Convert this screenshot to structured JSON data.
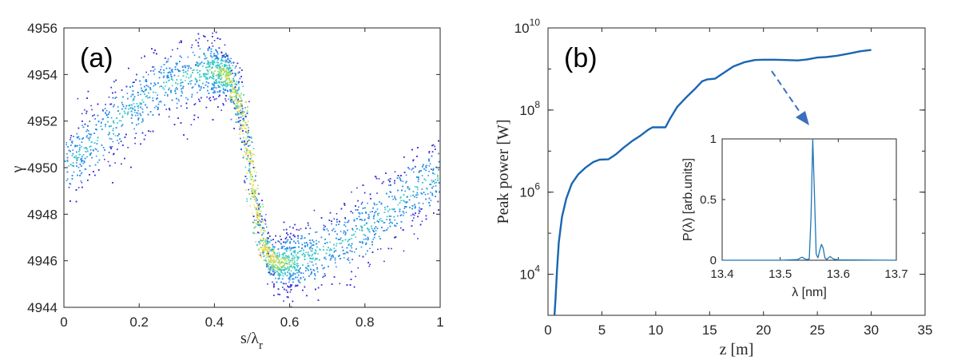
{
  "chart_data": [
    {
      "panel_label": "(a)",
      "type": "scatter",
      "xlabel": "s/λ",
      "xlabel_sub": "r",
      "ylabel": "γ",
      "xlim": [
        0,
        1
      ],
      "ylim": [
        4944,
        4956
      ],
      "xticks": [
        0,
        0.2,
        0.4,
        0.6,
        0.8,
        1
      ],
      "xtick_labels": [
        "0",
        "0.2",
        "0.4",
        "0.6",
        "0.8",
        "1"
      ],
      "yticks": [
        4944,
        4946,
        4948,
        4950,
        4952,
        4954,
        4956
      ],
      "ytick_labels": [
        "4944",
        "4946",
        "4948",
        "4950",
        "4952",
        "4954",
        "4956"
      ],
      "colormap": [
        "#3b2dd6",
        "#2b8ee8",
        "#3cc8c8",
        "#9ddc6a",
        "#f5d64a",
        "#f7e84a"
      ],
      "centerline": {
        "x": [
          0,
          0.05,
          0.1,
          0.15,
          0.2,
          0.25,
          0.3,
          0.35,
          0.4,
          0.44,
          0.47,
          0.5,
          0.53,
          0.56,
          0.6,
          0.65,
          0.7,
          0.75,
          0.8,
          0.85,
          0.9,
          0.95,
          1
        ],
        "y": [
          4950.0,
          4950.8,
          4951.5,
          4952.2,
          4952.9,
          4953.4,
          4953.8,
          4954.1,
          4954.2,
          4953.9,
          4952.5,
          4949.2,
          4946.6,
          4945.9,
          4946.0,
          4946.2,
          4946.5,
          4946.9,
          4947.4,
          4948.0,
          4948.7,
          4949.3,
          4949.8
        ]
      }
    },
    {
      "panel_label": "(b)",
      "type": "line",
      "xlabel": "z [m]",
      "ylabel": "Peak power [W]",
      "yscale": "log",
      "xlim": [
        0,
        35
      ],
      "ylim": [
        1000,
        10000000000
      ],
      "xticks": [
        0,
        5,
        10,
        15,
        20,
        25,
        30,
        35
      ],
      "xtick_labels": [
        "0",
        "5",
        "10",
        "15",
        "20",
        "25",
        "30",
        "35"
      ],
      "yticks": [
        10000,
        1000000,
        100000000,
        10000000000
      ],
      "ytick_labels": [
        {
          "base": "10",
          "exp": "4"
        },
        {
          "base": "10",
          "exp": "6"
        },
        {
          "base": "10",
          "exp": "8"
        },
        {
          "base": "10",
          "exp": "10"
        }
      ],
      "color": "#1a66b3",
      "series": [
        {
          "x": [
            0.6,
            0.7,
            0.85,
            1.0,
            1.3,
            1.7,
            2.2,
            2.8,
            3.5,
            4.2,
            4.8,
            5.6,
            6.3,
            7.0,
            7.8,
            8.6,
            9.3,
            9.7,
            10.3,
            10.9,
            11.3,
            12.0,
            12.8,
            13.6,
            14.3,
            14.8,
            15.5,
            16.3,
            17.2,
            18.2,
            19.2,
            20.0,
            21.0,
            22.0,
            23.2,
            24.0,
            25.0,
            25.8,
            26.8,
            28.0,
            29.0,
            30.0
          ],
          "y": [
            1000,
            2500,
            15000,
            60000,
            250000,
            700000,
            1600000,
            2700000,
            4000000,
            5400000,
            6200000,
            6300000,
            8300000,
            12000000,
            17500000,
            24000000,
            33000000,
            38000000,
            38000000,
            38000000,
            60000000,
            120000000,
            200000000,
            320000000,
            500000000,
            560000000,
            580000000,
            800000000,
            1150000000,
            1450000000,
            1650000000,
            1680000000,
            1680000000,
            1650000000,
            1620000000,
            1700000000,
            1900000000,
            1950000000,
            2100000000,
            2400000000,
            2700000000,
            2900000000
          ]
        }
      ],
      "arrow_color": "#3c6fbf",
      "inset": {
        "type": "line",
        "xlabel": "λ [nm]",
        "ylabel": "P(λ) [arb.units]",
        "xlim": [
          13.4,
          13.7
        ],
        "ylim": [
          0,
          1
        ],
        "xticks": [
          13.4,
          13.5,
          13.6,
          13.7
        ],
        "xtick_labels": [
          "13.4",
          "13.5",
          "13.6",
          "13.7"
        ],
        "yticks": [
          0,
          0.5,
          1
        ],
        "ytick_labels": [
          "0",
          "0.5",
          "1"
        ],
        "color": "#1f77b4",
        "series": [
          {
            "x": [
              13.4,
              13.5,
              13.53,
              13.535,
              13.538,
              13.541,
              13.545,
              13.55,
              13.553,
              13.556,
              13.559,
              13.562,
              13.565,
              13.568,
              13.571,
              13.574,
              13.577,
              13.58,
              13.583,
              13.586,
              13.589,
              13.592,
              13.6,
              13.7
            ],
            "y": [
              0,
              0,
              0.005,
              0.02,
              0.025,
              0.015,
              0.005,
              0.01,
              0.35,
              1.0,
              0.55,
              0.05,
              0.02,
              0.08,
              0.13,
              0.1,
              0.02,
              0.005,
              0.02,
              0.03,
              0.02,
              0.01,
              0.003,
              0
            ]
          }
        ]
      }
    }
  ]
}
